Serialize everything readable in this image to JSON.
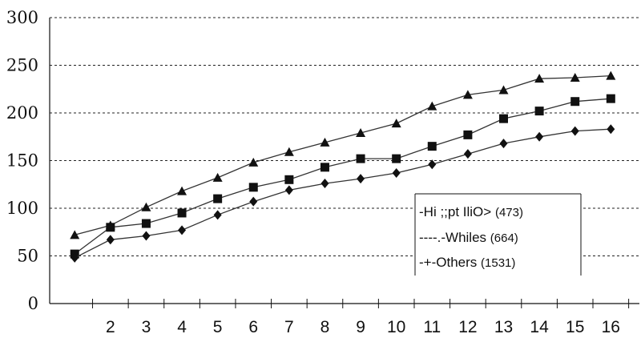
{
  "chart_data": {
    "type": "line",
    "x": [
      1,
      2,
      3,
      4,
      5,
      6,
      7,
      8,
      9,
      10,
      11,
      12,
      13,
      14,
      15,
      16
    ],
    "x_tick_labels": [
      "2",
      "3",
      "4",
      "5",
      "6",
      "7",
      "8",
      "9",
      "10",
      "11",
      "12",
      "13",
      "14",
      "15",
      "16"
    ],
    "y_tick_labels": [
      "0",
      "50",
      "100",
      "150",
      "200",
      "250",
      "300"
    ],
    "ylim": [
      0,
      300
    ],
    "xlim": [
      0.3,
      16.8
    ],
    "grid": true,
    "legend_position": "center-right",
    "series": [
      {
        "name": "-Hi ;;pt IliO>",
        "count": "(473)",
        "marker": "triangle",
        "values": [
          72,
          82,
          101,
          118,
          132,
          148,
          159,
          169,
          179,
          189,
          207,
          219,
          224,
          236,
          237,
          239
        ]
      },
      {
        "name": "----.-Whiles",
        "count": "(664)",
        "marker": "square",
        "values": [
          52,
          80,
          84,
          95,
          110,
          122,
          130,
          143,
          152,
          152,
          165,
          177,
          194,
          202,
          212,
          215
        ]
      },
      {
        "name": "-+-Others",
        "count": "(1531)",
        "marker": "diamond",
        "values": [
          48,
          67,
          71,
          77,
          93,
          107,
          119,
          126,
          131,
          137,
          146,
          157,
          168,
          175,
          181,
          183
        ]
      }
    ],
    "colors": {
      "line": "#333333",
      "marker": "#111111",
      "axis": "#111111"
    }
  }
}
